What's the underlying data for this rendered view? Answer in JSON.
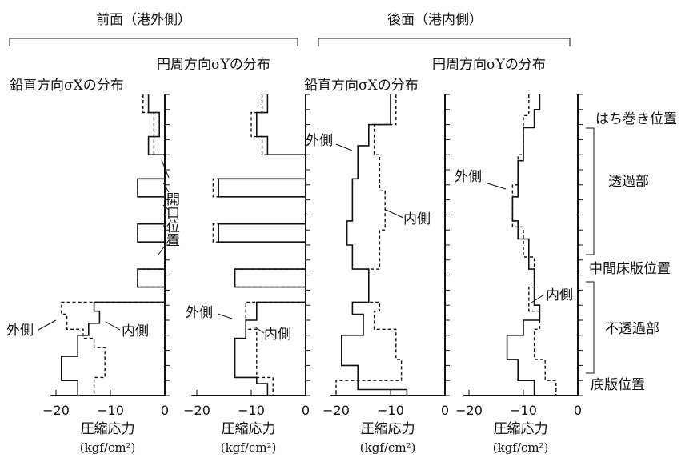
{
  "headers": {
    "front": "前面（港外側）",
    "back": "後面（港内側）"
  },
  "panel_titles": {
    "vertical": "鉛直方向σXの分布",
    "circumferential": "円周方向σYの分布"
  },
  "labels": {
    "outer": "外側",
    "inner": "内側",
    "opening": "開口位置"
  },
  "positions": {
    "hachimaki": "はち巻き位置",
    "permeable": "透過部",
    "middle_slab": "中間床版位置",
    "impermeable": "不透過部",
    "bottom_slab": "底版位置"
  },
  "xaxis": {
    "label": "圧縮応力",
    "unit": "(kgf/cm²)",
    "ticks": [
      "−20",
      "−10",
      "0"
    ]
  },
  "chart_data": [
    {
      "type": "line",
      "title": "鉛直方向σXの分布",
      "group": "前面（港外側）",
      "xlabel": "圧縮応力 (kgf/cm²)",
      "xlim": [
        -22,
        0
      ],
      "y_scale": "position along wall (0 = 底版位置 bottom, 1 = はち巻き位置 top)",
      "series": [
        {
          "name": "外側",
          "style": "solid",
          "points": [
            [
              -3,
              1.0
            ],
            [
              -3,
              0.94
            ],
            [
              -1,
              0.94
            ],
            [
              -1,
              0.86
            ],
            [
              -3,
              0.86
            ],
            [
              -3,
              0.8
            ],
            [
              0,
              0.8
            ],
            [
              0,
              0.72
            ],
            [
              -5,
              0.72
            ],
            [
              -5,
              0.66
            ],
            [
              0,
              0.66
            ],
            [
              0,
              0.57
            ],
            [
              -5,
              0.57
            ],
            [
              -5,
              0.51
            ],
            [
              0,
              0.51
            ],
            [
              0,
              0.42
            ],
            [
              -5,
              0.42
            ],
            [
              -5,
              0.36
            ],
            [
              0,
              0.36
            ],
            [
              0,
              0.31
            ],
            [
              -13,
              0.31
            ],
            [
              -13,
              0.28
            ],
            [
              -12,
              0.28
            ],
            [
              -12,
              0.24
            ],
            [
              -14,
              0.24
            ],
            [
              -14,
              0.2
            ],
            [
              -16,
              0.2
            ],
            [
              -16,
              0.13
            ],
            [
              -19,
              0.13
            ],
            [
              -19,
              0.05
            ],
            [
              -16,
              0.05
            ],
            [
              -16,
              0.0
            ]
          ]
        },
        {
          "name": "内側",
          "style": "dashed",
          "points": [
            [
              -4,
              1.0
            ],
            [
              -4,
              0.94
            ],
            [
              -2,
              0.94
            ],
            [
              -2,
              0.8
            ],
            [
              0,
              0.8
            ],
            [
              0,
              0.72
            ],
            [
              -5,
              0.72
            ],
            [
              -5,
              0.66
            ],
            [
              0,
              0.66
            ],
            [
              0,
              0.57
            ],
            [
              -5,
              0.57
            ],
            [
              -5,
              0.51
            ],
            [
              0,
              0.51
            ],
            [
              0,
              0.42
            ],
            [
              -5,
              0.42
            ],
            [
              -5,
              0.36
            ],
            [
              0,
              0.36
            ],
            [
              0,
              0.31
            ],
            [
              -19,
              0.31
            ],
            [
              -19,
              0.27
            ],
            [
              -18,
              0.27
            ],
            [
              -18,
              0.22
            ],
            [
              -15,
              0.22
            ],
            [
              -15,
              0.19
            ],
            [
              -13,
              0.19
            ],
            [
              -13,
              0.16
            ],
            [
              -11,
              0.16
            ],
            [
              -11,
              0.06
            ],
            [
              -13,
              0.06
            ],
            [
              -13,
              0.0
            ]
          ]
        }
      ]
    },
    {
      "type": "line",
      "title": "円周方向σYの分布",
      "group": "前面（港外側）",
      "xlabel": "圧縮応力 (kgf/cm²)",
      "xlim": [
        -22,
        0
      ],
      "y_scale": "position along wall (0 = 底版位置 bottom, 1 = はち巻き位置 top)",
      "series": [
        {
          "name": "外側",
          "style": "solid",
          "points": [
            [
              -7,
              1.0
            ],
            [
              -7,
              0.94
            ],
            [
              -9,
              0.94
            ],
            [
              -9,
              0.86
            ],
            [
              -7,
              0.86
            ],
            [
              -7,
              0.8
            ],
            [
              0,
              0.8
            ],
            [
              0,
              0.72
            ],
            [
              -16,
              0.72
            ],
            [
              -16,
              0.66
            ],
            [
              0,
              0.66
            ],
            [
              0,
              0.57
            ],
            [
              -16,
              0.57
            ],
            [
              -16,
              0.51
            ],
            [
              0,
              0.51
            ],
            [
              0,
              0.42
            ],
            [
              -13,
              0.42
            ],
            [
              -13,
              0.36
            ],
            [
              0,
              0.36
            ],
            [
              0,
              0.31
            ],
            [
              -9,
              0.31
            ],
            [
              -9,
              0.25
            ],
            [
              -11,
              0.25
            ],
            [
              -11,
              0.19
            ],
            [
              -13,
              0.19
            ],
            [
              -13,
              0.06
            ],
            [
              -9,
              0.06
            ],
            [
              -9,
              0.04
            ],
            [
              -7,
              0.04
            ],
            [
              -7,
              0.0
            ]
          ]
        },
        {
          "name": "内側",
          "style": "dashed",
          "points": [
            [
              -8,
              1.0
            ],
            [
              -8,
              0.94
            ],
            [
              -10,
              0.94
            ],
            [
              -10,
              0.86
            ],
            [
              -8,
              0.86
            ],
            [
              -8,
              0.8
            ],
            [
              0,
              0.8
            ],
            [
              0,
              0.72
            ],
            [
              -17,
              0.72
            ],
            [
              -17,
              0.66
            ],
            [
              0,
              0.66
            ],
            [
              0,
              0.57
            ],
            [
              -17,
              0.57
            ],
            [
              -17,
              0.51
            ],
            [
              0,
              0.51
            ],
            [
              0,
              0.42
            ],
            [
              -13,
              0.42
            ],
            [
              -13,
              0.36
            ],
            [
              0,
              0.36
            ],
            [
              0,
              0.31
            ],
            [
              -11,
              0.31
            ],
            [
              -11,
              0.22
            ],
            [
              -9,
              0.22
            ],
            [
              -9,
              0.06
            ],
            [
              -6,
              0.06
            ],
            [
              -6,
              0.0
            ]
          ]
        }
      ]
    },
    {
      "type": "line",
      "title": "鉛直方向σXの分布",
      "group": "後面（港内側）",
      "xlabel": "圧縮応力 (kgf/cm²)",
      "xlim": [
        -22,
        0
      ],
      "y_scale": "position along wall (0 = 底版位置 bottom, 1 = はち巻き位置 top)",
      "series": [
        {
          "name": "外側",
          "style": "solid",
          "points": [
            [
              -10,
              1.0
            ],
            [
              -10,
              0.9
            ],
            [
              -14,
              0.9
            ],
            [
              -14,
              0.83
            ],
            [
              -16,
              0.83
            ],
            [
              -16,
              0.72
            ],
            [
              -17,
              0.72
            ],
            [
              -17,
              0.58
            ],
            [
              -18,
              0.58
            ],
            [
              -18,
              0.5
            ],
            [
              -17,
              0.5
            ],
            [
              -17,
              0.42
            ],
            [
              -14,
              0.42
            ],
            [
              -14,
              0.31
            ],
            [
              -17,
              0.31
            ],
            [
              -17,
              0.27
            ],
            [
              -15,
              0.27
            ],
            [
              -15,
              0.2
            ],
            [
              -19,
              0.2
            ],
            [
              -19,
              0.1
            ],
            [
              -16,
              0.1
            ],
            [
              -16,
              0.02
            ],
            [
              -7,
              0.02
            ],
            [
              -7,
              0.0
            ]
          ]
        },
        {
          "name": "内側",
          "style": "dashed",
          "points": [
            [
              -9,
              1.0
            ],
            [
              -9,
              0.9
            ],
            [
              -13,
              0.9
            ],
            [
              -13,
              0.8
            ],
            [
              -12,
              0.8
            ],
            [
              -12,
              0.68
            ],
            [
              -11,
              0.68
            ],
            [
              -11,
              0.55
            ],
            [
              -12,
              0.55
            ],
            [
              -12,
              0.42
            ],
            [
              -14,
              0.42
            ],
            [
              -14,
              0.31
            ],
            [
              -12,
              0.31
            ],
            [
              -12,
              0.28
            ],
            [
              -13,
              0.28
            ],
            [
              -13,
              0.22
            ],
            [
              -9,
              0.22
            ],
            [
              -9,
              0.12
            ],
            [
              -8,
              0.12
            ],
            [
              -8,
              0.05
            ],
            [
              -20,
              0.05
            ],
            [
              -20,
              0.0
            ]
          ]
        }
      ]
    },
    {
      "type": "line",
      "title": "円周方向σYの分布",
      "group": "後面（港内側）",
      "xlabel": "圧縮応力 (kgf/cm²)",
      "xlim": [
        -22,
        0
      ],
      "y_scale": "position along wall (0 = 底版位置 bottom, 1 = はち巻き位置 top)",
      "series": [
        {
          "name": "外側",
          "style": "solid",
          "points": [
            [
              -7,
              1.0
            ],
            [
              -7,
              0.95
            ],
            [
              -8,
              0.95
            ],
            [
              -8,
              0.89
            ],
            [
              -10,
              0.89
            ],
            [
              -10,
              0.78
            ],
            [
              -11,
              0.78
            ],
            [
              -11,
              0.66
            ],
            [
              -12,
              0.66
            ],
            [
              -12,
              0.58
            ],
            [
              -11,
              0.58
            ],
            [
              -11,
              0.52
            ],
            [
              -9,
              0.52
            ],
            [
              -9,
              0.42
            ],
            [
              -8,
              0.42
            ],
            [
              -8,
              0.3
            ],
            [
              -7,
              0.3
            ],
            [
              -7,
              0.25
            ],
            [
              -10,
              0.25
            ],
            [
              -10,
              0.2
            ],
            [
              -13,
              0.2
            ],
            [
              -13,
              0.12
            ],
            [
              -11,
              0.12
            ],
            [
              -11,
              0.05
            ],
            [
              -8,
              0.05
            ],
            [
              -8,
              0.0
            ]
          ]
        },
        {
          "name": "内側",
          "style": "dashed",
          "points": [
            [
              -9,
              1.0
            ],
            [
              -9,
              0.93
            ],
            [
              -10,
              0.93
            ],
            [
              -10,
              0.8
            ],
            [
              -11,
              0.8
            ],
            [
              -11,
              0.7
            ],
            [
              -12,
              0.7
            ],
            [
              -12,
              0.56
            ],
            [
              -10,
              0.56
            ],
            [
              -10,
              0.46
            ],
            [
              -8,
              0.46
            ],
            [
              -8,
              0.36
            ],
            [
              -9,
              0.36
            ],
            [
              -9,
              0.28
            ],
            [
              -7,
              0.28
            ],
            [
              -7,
              0.22
            ],
            [
              -8,
              0.22
            ],
            [
              -8,
              0.12
            ],
            [
              -6,
              0.12
            ],
            [
              -6,
              0.05
            ],
            [
              -4,
              0.05
            ],
            [
              -4,
              0.0
            ]
          ]
        }
      ]
    }
  ]
}
